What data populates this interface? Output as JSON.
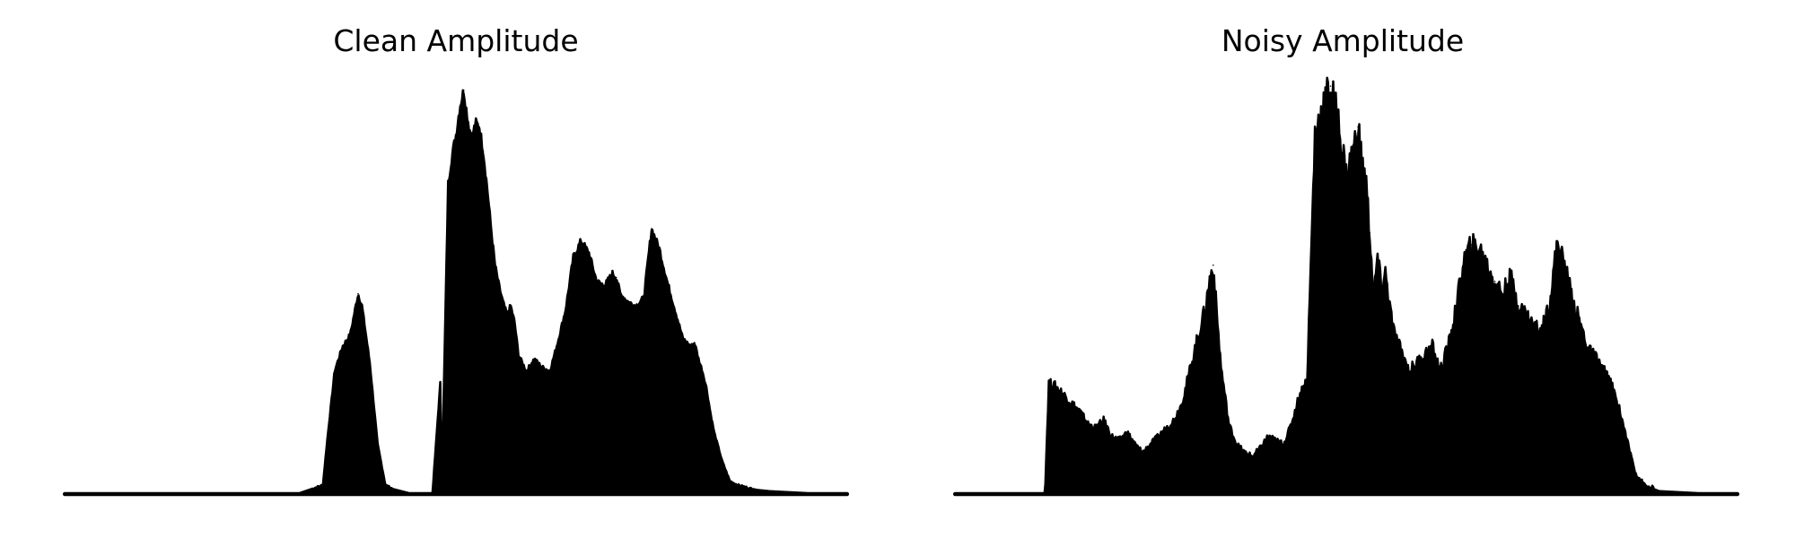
{
  "chart_data": [
    {
      "type": "area",
      "title": "Clean Amplitude",
      "xlabel": "",
      "ylabel": "",
      "xlim": [
        0,
        1
      ],
      "ylim": [
        0,
        1
      ],
      "grid": false,
      "axes_visible": false,
      "color": "#000000",
      "x": [
        0.0,
        0.1,
        0.2,
        0.3,
        0.33,
        0.335,
        0.345,
        0.355,
        0.365,
        0.37,
        0.375,
        0.38,
        0.39,
        0.4,
        0.41,
        0.42,
        0.44,
        0.46,
        0.47,
        0.48,
        0.482,
        0.49,
        0.495,
        0.5,
        0.505,
        0.51,
        0.515,
        0.52,
        0.525,
        0.53,
        0.535,
        0.54,
        0.545,
        0.55,
        0.555,
        0.56,
        0.565,
        0.57,
        0.575,
        0.58,
        0.59,
        0.6,
        0.61,
        0.62,
        0.63,
        0.64,
        0.65,
        0.66,
        0.67,
        0.68,
        0.69,
        0.7,
        0.705,
        0.71,
        0.72,
        0.73,
        0.74,
        0.75,
        0.76,
        0.77,
        0.78,
        0.79,
        0.8,
        0.805,
        0.81,
        0.815,
        0.82,
        0.825,
        0.83,
        0.84,
        0.85,
        0.86,
        0.87,
        0.875,
        0.88,
        0.885,
        0.9,
        0.95,
        1.0
      ],
      "y": [
        0.0,
        0.0,
        0.0,
        0.0,
        0.02,
        0.12,
        0.3,
        0.36,
        0.39,
        0.44,
        0.49,
        0.46,
        0.32,
        0.12,
        0.02,
        0.01,
        0.0,
        0.0,
        0.0,
        0.27,
        0.02,
        0.76,
        0.83,
        0.88,
        0.95,
        0.99,
        0.92,
        0.87,
        0.91,
        0.9,
        0.84,
        0.75,
        0.65,
        0.56,
        0.51,
        0.47,
        0.44,
        0.46,
        0.42,
        0.34,
        0.3,
        0.33,
        0.31,
        0.3,
        0.37,
        0.45,
        0.58,
        0.62,
        0.59,
        0.52,
        0.51,
        0.54,
        0.53,
        0.49,
        0.47,
        0.46,
        0.48,
        0.65,
        0.6,
        0.52,
        0.45,
        0.38,
        0.36,
        0.37,
        0.33,
        0.3,
        0.26,
        0.2,
        0.15,
        0.08,
        0.03,
        0.02,
        0.015,
        0.012,
        0.01,
        0.008,
        0.005,
        0.0,
        0.0
      ]
    },
    {
      "type": "area",
      "title": "Noisy Amplitude",
      "xlabel": "",
      "ylabel": "",
      "xlim": [
        0,
        1
      ],
      "ylim": [
        0,
        1
      ],
      "grid": false,
      "axes_visible": false,
      "color": "#000000",
      "x": [
        0.0,
        0.05,
        0.1,
        0.115,
        0.12,
        0.13,
        0.14,
        0.15,
        0.16,
        0.17,
        0.18,
        0.19,
        0.2,
        0.21,
        0.22,
        0.23,
        0.24,
        0.25,
        0.26,
        0.27,
        0.28,
        0.29,
        0.3,
        0.31,
        0.315,
        0.32,
        0.325,
        0.33,
        0.335,
        0.34,
        0.35,
        0.36,
        0.37,
        0.38,
        0.39,
        0.4,
        0.41,
        0.42,
        0.43,
        0.44,
        0.45,
        0.46,
        0.47,
        0.48,
        0.49,
        0.5,
        0.51,
        0.515,
        0.52,
        0.525,
        0.53,
        0.535,
        0.54,
        0.545,
        0.55,
        0.555,
        0.56,
        0.57,
        0.58,
        0.59,
        0.6,
        0.61,
        0.62,
        0.63,
        0.64,
        0.65,
        0.66,
        0.67,
        0.68,
        0.69,
        0.7,
        0.71,
        0.72,
        0.73,
        0.74,
        0.75,
        0.76,
        0.77,
        0.78,
        0.79,
        0.8,
        0.81,
        0.82,
        0.83,
        0.84,
        0.85,
        0.86,
        0.87,
        0.88,
        0.89,
        0.9,
        0.95,
        1.0
      ],
      "y": [
        0.0,
        0.0,
        0.0,
        0.0,
        0.27,
        0.26,
        0.24,
        0.22,
        0.2,
        0.17,
        0.16,
        0.18,
        0.14,
        0.13,
        0.15,
        0.12,
        0.1,
        0.12,
        0.14,
        0.16,
        0.18,
        0.22,
        0.3,
        0.38,
        0.42,
        0.45,
        0.52,
        0.56,
        0.43,
        0.31,
        0.17,
        0.12,
        0.1,
        0.09,
        0.11,
        0.14,
        0.13,
        0.12,
        0.17,
        0.24,
        0.28,
        0.88,
        0.95,
        1.0,
        0.91,
        0.78,
        0.85,
        0.9,
        0.81,
        0.77,
        0.64,
        0.48,
        0.58,
        0.5,
        0.54,
        0.47,
        0.4,
        0.35,
        0.3,
        0.32,
        0.34,
        0.36,
        0.3,
        0.36,
        0.45,
        0.57,
        0.61,
        0.6,
        0.56,
        0.52,
        0.49,
        0.53,
        0.46,
        0.44,
        0.41,
        0.4,
        0.47,
        0.62,
        0.55,
        0.47,
        0.41,
        0.35,
        0.33,
        0.3,
        0.26,
        0.2,
        0.12,
        0.05,
        0.02,
        0.012,
        0.005,
        0.0,
        0.0
      ]
    }
  ]
}
